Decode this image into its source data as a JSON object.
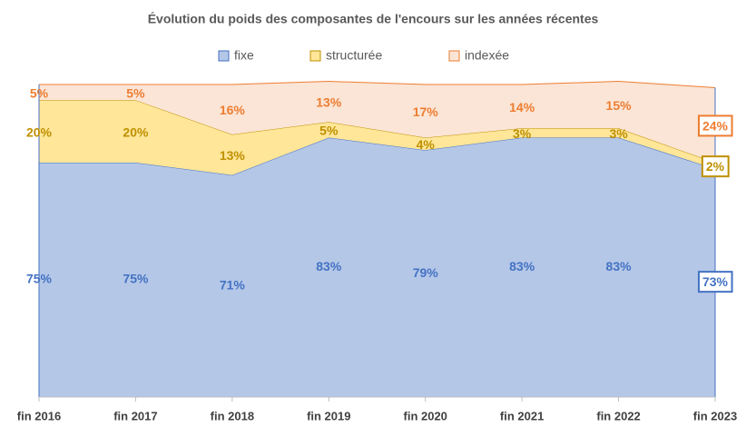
{
  "chart_data": {
    "type": "stacked_area",
    "title": "Évolution du poids des composantes de l'encours sur les années récentes",
    "categories": [
      "fin 2016",
      "fin 2017",
      "fin 2018",
      "fin 2019",
      "fin 2020",
      "fin 2021",
      "fin 2022",
      "fin 2023"
    ],
    "series": [
      {
        "name": "fixe",
        "color": "#b4c7e7",
        "stroke": "#4472c4",
        "label_color": "#4472c4",
        "values": [
          75,
          75,
          71,
          83,
          79,
          83,
          83,
          73
        ],
        "value_labels": [
          "75%",
          "75%",
          "71%",
          "83%",
          "79%",
          "83%",
          "83%",
          "73%"
        ]
      },
      {
        "name": "structurée",
        "color": "#ffe699",
        "stroke": "#bf9000",
        "label_color": "#bf9000",
        "values": [
          20,
          20,
          13,
          5,
          4,
          3,
          3,
          2
        ],
        "value_labels": [
          "20%",
          "20%",
          "13%",
          "5%",
          "4%",
          "3%",
          "3%",
          "2%"
        ]
      },
      {
        "name": "indexée",
        "color": "#fbe5d6",
        "stroke": "#ed7d31",
        "label_color": "#ed7d31",
        "values": [
          5,
          5,
          16,
          13,
          17,
          14,
          15,
          24
        ],
        "value_labels": [
          "5%",
          "5%",
          "16%",
          "13%",
          "17%",
          "14%",
          "15%",
          "24%"
        ]
      }
    ],
    "ylim": [
      0,
      100
    ],
    "legend": "top"
  }
}
